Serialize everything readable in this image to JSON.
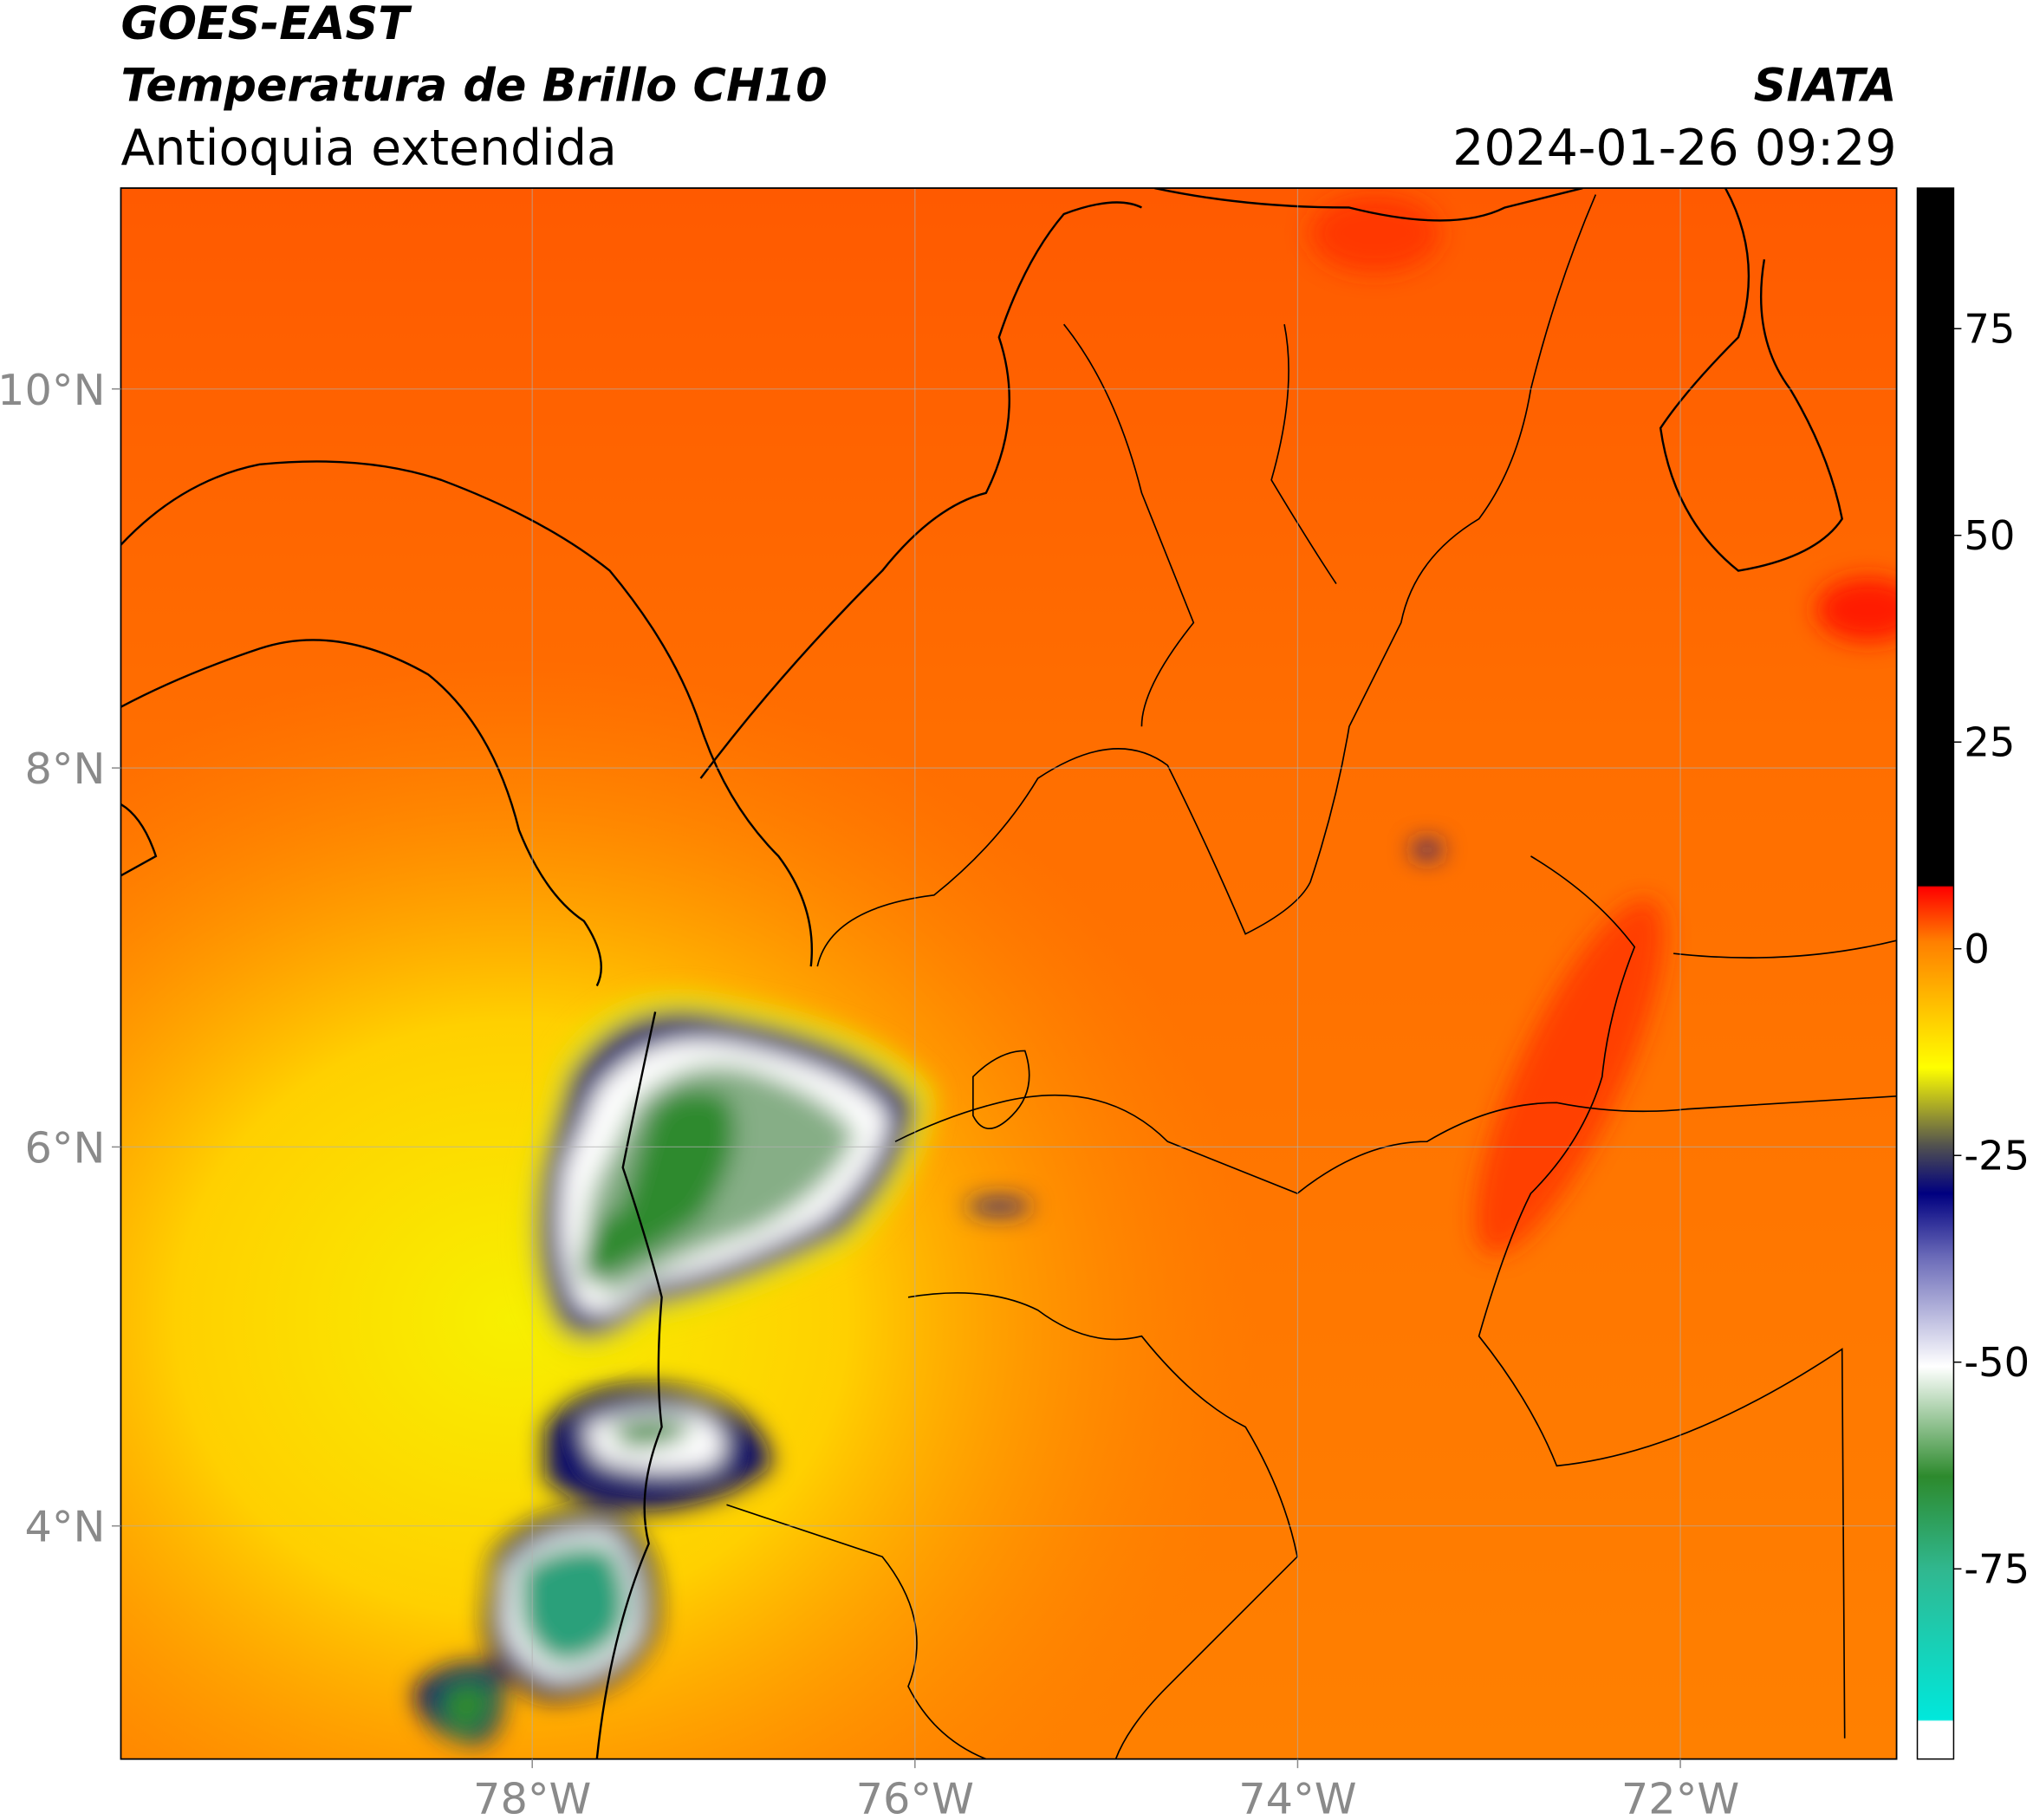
{
  "header": {
    "title": "GOES-EAST",
    "subtitle": "Temperatura de Brillo CH10",
    "region": "Antioquia extendida",
    "source": "SIATA",
    "datetime": "2024-01-26 09:29"
  },
  "map": {
    "lon_range": [
      -80.15,
      -70.87
    ],
    "lat_range": [
      2.77,
      11.06
    ],
    "lon_ticks": [
      {
        "value": -78,
        "label": "78°W"
      },
      {
        "value": -76,
        "label": "76°W"
      },
      {
        "value": -74,
        "label": "74°W"
      },
      {
        "value": -72,
        "label": "72°W"
      }
    ],
    "lat_ticks": [
      {
        "value": 4,
        "label": "4°N"
      },
      {
        "value": 6,
        "label": "6°N"
      },
      {
        "value": 8,
        "label": "8°N"
      },
      {
        "value": 10,
        "label": "10°N"
      }
    ]
  },
  "colorbar": {
    "range": [
      -98,
      92
    ],
    "ticks": [
      -75,
      -50,
      -25,
      0,
      25,
      50,
      75
    ]
  }
}
